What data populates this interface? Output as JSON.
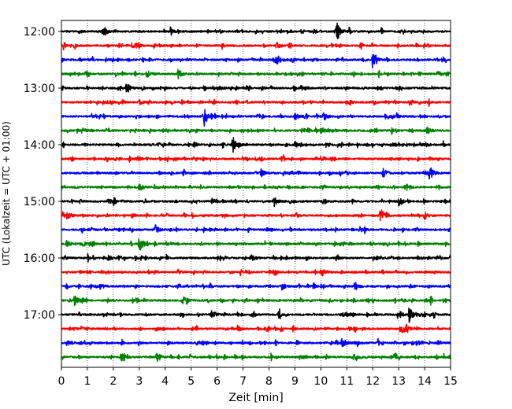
{
  "chart_data": {
    "type": "line",
    "title": "",
    "xlabel": "Zeit  [min]",
    "ylabel": "UTC (Lokalzeit = UTC + 01:00)",
    "xlim": [
      0,
      15
    ],
    "x_ticks": [
      0,
      1,
      2,
      3,
      4,
      5,
      6,
      7,
      8,
      9,
      10,
      11,
      12,
      13,
      14,
      15
    ],
    "x_grid": "dotted vertical at each minute",
    "y_tick_labels": [
      "12:00",
      "13:00",
      "14:00",
      "15:00",
      "16:00",
      "17:00"
    ],
    "trace_interval_min": 15,
    "trace_colors": [
      "#000000",
      "#ff0000",
      "#0000ff",
      "#008000"
    ],
    "traces": [
      {
        "start": "12:00",
        "color": "#000000",
        "events": [
          [
            1.6,
            0.5
          ],
          [
            10.6,
            1.0
          ]
        ]
      },
      {
        "start": "12:15",
        "color": "#ff0000",
        "events": [
          [
            2.8,
            0.35
          ],
          [
            8.3,
            0.3
          ]
        ]
      },
      {
        "start": "12:30",
        "color": "#0000ff",
        "events": [
          [
            8.3,
            0.6
          ],
          [
            12.0,
            1.0
          ]
        ]
      },
      {
        "start": "12:45",
        "color": "#008000",
        "events": [
          [
            3.3,
            0.35
          ],
          [
            4.5,
            0.4
          ],
          [
            14.5,
            0.35
          ]
        ]
      },
      {
        "start": "13:00",
        "color": "#000000",
        "events": [
          [
            2.5,
            0.4
          ],
          [
            6.0,
            0.3
          ]
        ]
      },
      {
        "start": "13:15",
        "color": "#ff0000",
        "events": [
          [
            3.0,
            0.25
          ],
          [
            11.0,
            0.25
          ]
        ]
      },
      {
        "start": "13:30",
        "color": "#0000ff",
        "events": [
          [
            5.5,
            0.9
          ],
          [
            9.0,
            0.35
          ],
          [
            10.1,
            0.45
          ]
        ]
      },
      {
        "start": "13:45",
        "color": "#008000",
        "events": [
          [
            0.8,
            0.3
          ],
          [
            10.0,
            0.3
          ],
          [
            14.1,
            0.4
          ]
        ]
      },
      {
        "start": "14:00",
        "color": "#000000",
        "events": [
          [
            6.6,
            0.7
          ],
          [
            9.0,
            0.3
          ],
          [
            14.0,
            0.25
          ]
        ]
      },
      {
        "start": "14:15",
        "color": "#ff0000",
        "events": [
          [
            2.9,
            0.25
          ],
          [
            7.5,
            0.25
          ]
        ]
      },
      {
        "start": "14:30",
        "color": "#0000ff",
        "events": [
          [
            7.7,
            0.35
          ],
          [
            12.4,
            0.5
          ],
          [
            14.2,
            0.7
          ]
        ]
      },
      {
        "start": "14:45",
        "color": "#008000",
        "events": [
          [
            3.0,
            0.3
          ],
          [
            13.3,
            0.3
          ]
        ]
      },
      {
        "start": "15:00",
        "color": "#000000",
        "events": [
          [
            1.8,
            0.3
          ],
          [
            8.2,
            0.45
          ],
          [
            13.0,
            0.3
          ]
        ]
      },
      {
        "start": "15:15",
        "color": "#ff0000",
        "events": [
          [
            0.2,
            0.35
          ],
          [
            12.3,
            0.8
          ],
          [
            14.0,
            0.45
          ]
        ]
      },
      {
        "start": "15:30",
        "color": "#0000ff",
        "events": [
          [
            3.6,
            0.3
          ],
          [
            11.5,
            0.3
          ]
        ]
      },
      {
        "start": "15:45",
        "color": "#008000",
        "events": [
          [
            0.2,
            0.4
          ],
          [
            3.0,
            0.9
          ]
        ]
      },
      {
        "start": "16:00",
        "color": "#000000",
        "events": [
          [
            1.8,
            0.3
          ],
          [
            7.3,
            0.4
          ],
          [
            15.0,
            0.4
          ]
        ]
      },
      {
        "start": "16:15",
        "color": "#ff0000",
        "events": [
          [
            4.5,
            0.25
          ],
          [
            10.0,
            0.25
          ]
        ]
      },
      {
        "start": "16:30",
        "color": "#0000ff",
        "events": [
          [
            1.5,
            0.3
          ],
          [
            8.5,
            0.3
          ],
          [
            11.3,
            0.3
          ]
        ]
      },
      {
        "start": "16:45",
        "color": "#008000",
        "events": [
          [
            0.5,
            0.5
          ],
          [
            4.7,
            0.4
          ]
        ]
      },
      {
        "start": "17:00",
        "color": "#000000",
        "events": [
          [
            5.8,
            0.5
          ],
          [
            13.4,
            0.8
          ]
        ]
      },
      {
        "start": "17:15",
        "color": "#ff0000",
        "events": [
          [
            6.8,
            0.25
          ],
          [
            13.2,
            0.35
          ]
        ]
      },
      {
        "start": "17:30",
        "color": "#0000ff",
        "events": [
          [
            0.2,
            0.3
          ],
          [
            10.8,
            0.45
          ]
        ]
      },
      {
        "start": "17:45",
        "color": "#008000",
        "events": [
          [
            2.3,
            0.3
          ],
          [
            3.7,
            0.3
          ]
        ]
      }
    ]
  }
}
